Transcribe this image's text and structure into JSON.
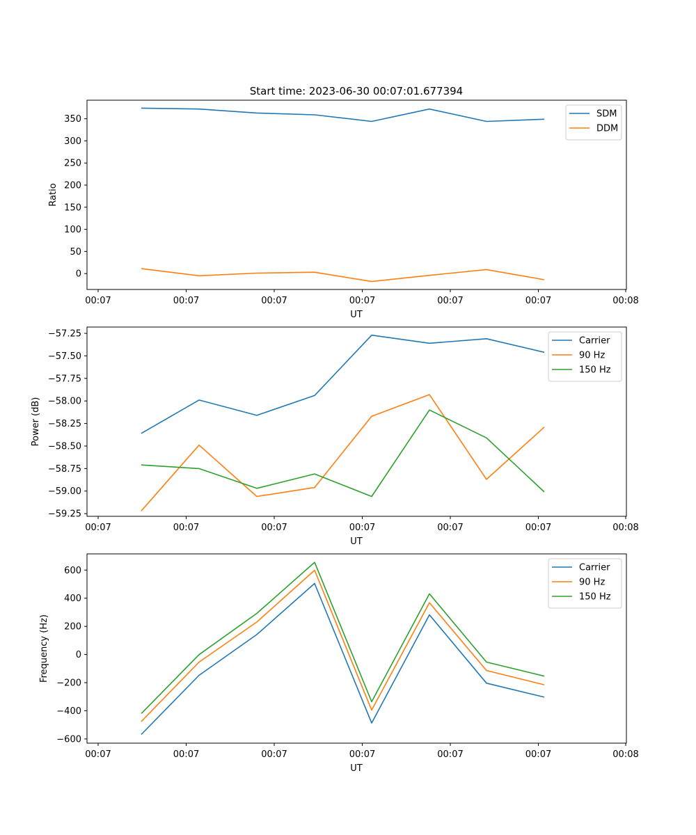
{
  "figure": {
    "title": "Start time: 2023-06-30 00:07:01.677394"
  },
  "chart_data": [
    {
      "type": "line",
      "xlabel": "UT",
      "ylabel": "Ratio",
      "x_tick_labels": [
        "00:07",
        "00:07",
        "00:07",
        "00:07",
        "00:07",
        "00:07",
        "00:07",
        "00:08"
      ],
      "y_ticks": [
        0,
        50,
        100,
        150,
        200,
        250,
        300,
        350
      ],
      "ylim": [
        -36,
        392
      ],
      "legend_placement": "top-right",
      "grid": false,
      "series": [
        {
          "name": "SDM",
          "color": "#1f77b4",
          "values": [
            374,
            372,
            363,
            359,
            344,
            372,
            344,
            349
          ]
        },
        {
          "name": "DDM",
          "color": "#ff7f0e",
          "values": [
            11,
            -5,
            1,
            3,
            -18,
            -4,
            9,
            -14
          ]
        }
      ]
    },
    {
      "type": "line",
      "xlabel": "UT",
      "ylabel": "Power (dB)",
      "x_tick_labels": [
        "00:07",
        "00:07",
        "00:07",
        "00:07",
        "00:07",
        "00:07",
        "00:07",
        "00:08"
      ],
      "y_ticks": [
        -59.25,
        -59.0,
        -58.75,
        -58.5,
        -58.25,
        -58.0,
        -57.75,
        -57.5,
        -57.25
      ],
      "y_tick_labels": [
        "−59.25",
        "−59.00",
        "−58.75",
        "−58.50",
        "−58.25",
        "−58.00",
        "−57.75",
        "−57.50",
        "−57.25"
      ],
      "ylim": [
        -59.28,
        -57.18
      ],
      "legend_placement": "top-right",
      "grid": false,
      "series": [
        {
          "name": "Carrier",
          "color": "#1f77b4",
          "values": [
            -58.36,
            -57.99,
            -58.16,
            -57.94,
            -57.27,
            -57.36,
            -57.31,
            -57.46
          ]
        },
        {
          "name": "90 Hz",
          "color": "#ff7f0e",
          "values": [
            -59.22,
            -58.49,
            -59.06,
            -58.96,
            -58.17,
            -57.93,
            -58.87,
            -58.29
          ]
        },
        {
          "name": "150 Hz",
          "color": "#2ca02c",
          "values": [
            -58.71,
            -58.75,
            -58.97,
            -58.81,
            -59.06,
            -58.1,
            -58.41,
            -59.01
          ]
        }
      ]
    },
    {
      "type": "line",
      "xlabel": "UT",
      "ylabel": "Frequency (Hz)",
      "x_tick_labels": [
        "00:07",
        "00:07",
        "00:07",
        "00:07",
        "00:07",
        "00:07",
        "00:07",
        "00:08"
      ],
      "y_ticks": [
        -600,
        -400,
        -200,
        0,
        200,
        400,
        600
      ],
      "y_tick_labels": [
        "−600",
        "−400",
        "−200",
        "0",
        "200",
        "400",
        "600"
      ],
      "ylim": [
        -630,
        715
      ],
      "legend_placement": "top-right",
      "grid": false,
      "series": [
        {
          "name": "Carrier",
          "color": "#1f77b4",
          "values": [
            -568,
            -148,
            142,
            505,
            -487,
            282,
            -204,
            -303
          ]
        },
        {
          "name": "90 Hz",
          "color": "#ff7f0e",
          "values": [
            -476,
            -54,
            231,
            599,
            -395,
            368,
            -114,
            -215
          ]
        },
        {
          "name": "150 Hz",
          "color": "#2ca02c",
          "values": [
            -420,
            -1,
            292,
            655,
            -336,
            431,
            -54,
            -154
          ]
        }
      ]
    }
  ]
}
